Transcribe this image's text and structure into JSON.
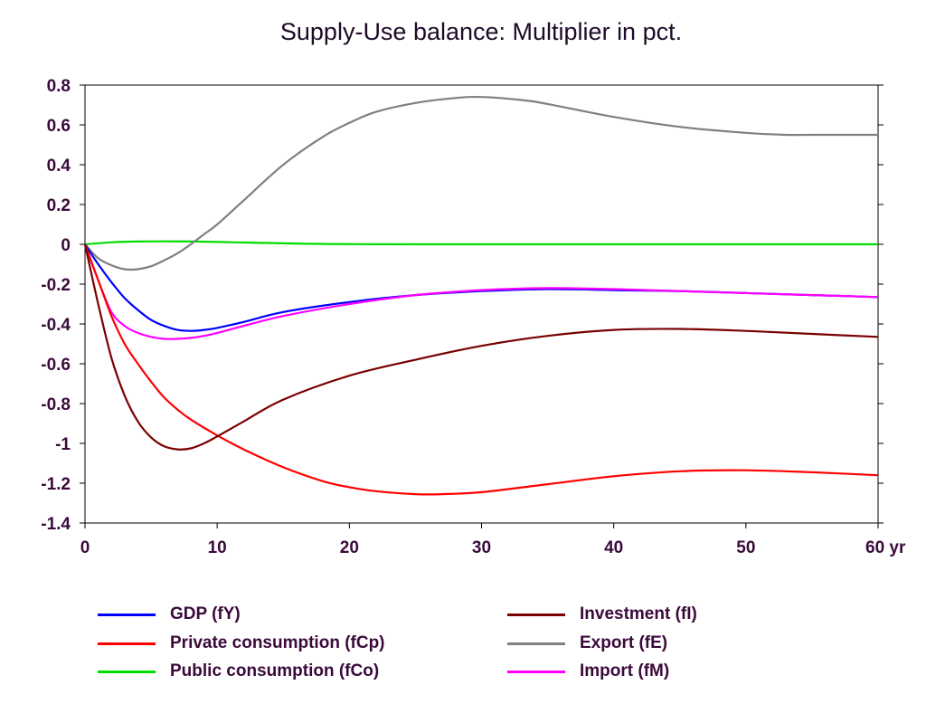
{
  "chart_data": {
    "type": "line",
    "title": "Supply-Use balance: Multiplier in pct.",
    "xlabel": "",
    "ylabel": "",
    "x_unit_label": "yr",
    "xlim": [
      0,
      60
    ],
    "ylim": [
      -1.4,
      0.8
    ],
    "x_ticks": [
      0,
      10,
      20,
      30,
      40,
      50,
      60
    ],
    "x_tick_labels": [
      "0",
      "10",
      "20",
      "30",
      "40",
      "50",
      "60"
    ],
    "y_ticks": [
      0.8,
      0.6,
      0.4,
      0.2,
      0,
      -0.2,
      -0.4,
      -0.6,
      -0.8,
      -1,
      -1.2,
      -1.4
    ],
    "y_tick_labels": [
      "0.8",
      "0.6",
      "0.4",
      "0.2",
      "0",
      "-0.2",
      "-0.4",
      "-0.6",
      "-0.8",
      "-1",
      "-1.2",
      "-1.4"
    ],
    "grid": false,
    "legend_position": "bottom",
    "series": [
      {
        "name": "GDP (fY)",
        "color": "#0000ff",
        "x": [
          0,
          1,
          2,
          3,
          4,
          5,
          6,
          7,
          8,
          9,
          10,
          12,
          15,
          20,
          25,
          30,
          35,
          40,
          45,
          50,
          55,
          60
        ],
        "y": [
          0,
          -0.1,
          -0.19,
          -0.27,
          -0.33,
          -0.38,
          -0.41,
          -0.43,
          -0.435,
          -0.43,
          -0.42,
          -0.39,
          -0.34,
          -0.29,
          -0.255,
          -0.235,
          -0.225,
          -0.23,
          -0.235,
          -0.245,
          -0.255,
          -0.265
        ]
      },
      {
        "name": "Private consumption (fCp)",
        "color": "#ff0000",
        "x": [
          0,
          1,
          2,
          3,
          4,
          5,
          6,
          7,
          8,
          10,
          12,
          15,
          18,
          20,
          22,
          25,
          27,
          30,
          35,
          40,
          45,
          50,
          55,
          60
        ],
        "y": [
          0,
          -0.18,
          -0.36,
          -0.5,
          -0.6,
          -0.69,
          -0.77,
          -0.83,
          -0.88,
          -0.96,
          -1.03,
          -1.12,
          -1.19,
          -1.22,
          -1.24,
          -1.255,
          -1.255,
          -1.245,
          -1.205,
          -1.165,
          -1.14,
          -1.135,
          -1.145,
          -1.16
        ]
      },
      {
        "name": "Public consumption (fCo)",
        "color": "#00dd00",
        "x": [
          0,
          2,
          4,
          6,
          8,
          10,
          12,
          15,
          20,
          30,
          40,
          50,
          60
        ],
        "y": [
          0,
          0.01,
          0.014,
          0.015,
          0.014,
          0.012,
          0.009,
          0.005,
          0.001,
          0,
          0,
          0,
          0
        ]
      },
      {
        "name": "Investment (fI)",
        "color": "#7a0000",
        "x": [
          0,
          1,
          2,
          3,
          4,
          5,
          6,
          7,
          8,
          9,
          10,
          12,
          15,
          20,
          25,
          30,
          35,
          40,
          45,
          50,
          55,
          60
        ],
        "y": [
          0,
          -0.3,
          -0.57,
          -0.76,
          -0.89,
          -0.97,
          -1.015,
          -1.03,
          -1.025,
          -1.0,
          -0.965,
          -0.89,
          -0.78,
          -0.66,
          -0.58,
          -0.51,
          -0.46,
          -0.43,
          -0.425,
          -0.435,
          -0.45,
          -0.465
        ]
      },
      {
        "name": "Export (fE)",
        "color": "#808080",
        "x": [
          0,
          1,
          2,
          3,
          4,
          5,
          6,
          7,
          8,
          9,
          10,
          12,
          15,
          18,
          20,
          22,
          25,
          28,
          30,
          33,
          35,
          40,
          45,
          50,
          53,
          55,
          60
        ],
        "y": [
          0,
          -0.07,
          -0.105,
          -0.125,
          -0.125,
          -0.11,
          -0.08,
          -0.045,
          0,
          0.05,
          0.1,
          0.22,
          0.4,
          0.54,
          0.61,
          0.665,
          0.71,
          0.735,
          0.74,
          0.725,
          0.705,
          0.64,
          0.59,
          0.56,
          0.55,
          0.55,
          0.55
        ]
      },
      {
        "name": "Import (fM)",
        "color": "#ff00ff",
        "x": [
          0,
          1,
          2,
          3,
          4,
          5,
          6,
          7,
          8,
          9,
          10,
          12,
          15,
          20,
          25,
          30,
          35,
          40,
          45,
          50,
          55,
          60
        ],
        "y": [
          0,
          -0.18,
          -0.34,
          -0.41,
          -0.445,
          -0.465,
          -0.475,
          -0.475,
          -0.47,
          -0.46,
          -0.445,
          -0.41,
          -0.36,
          -0.3,
          -0.255,
          -0.23,
          -0.22,
          -0.225,
          -0.235,
          -0.245,
          -0.255,
          -0.265
        ]
      }
    ]
  }
}
